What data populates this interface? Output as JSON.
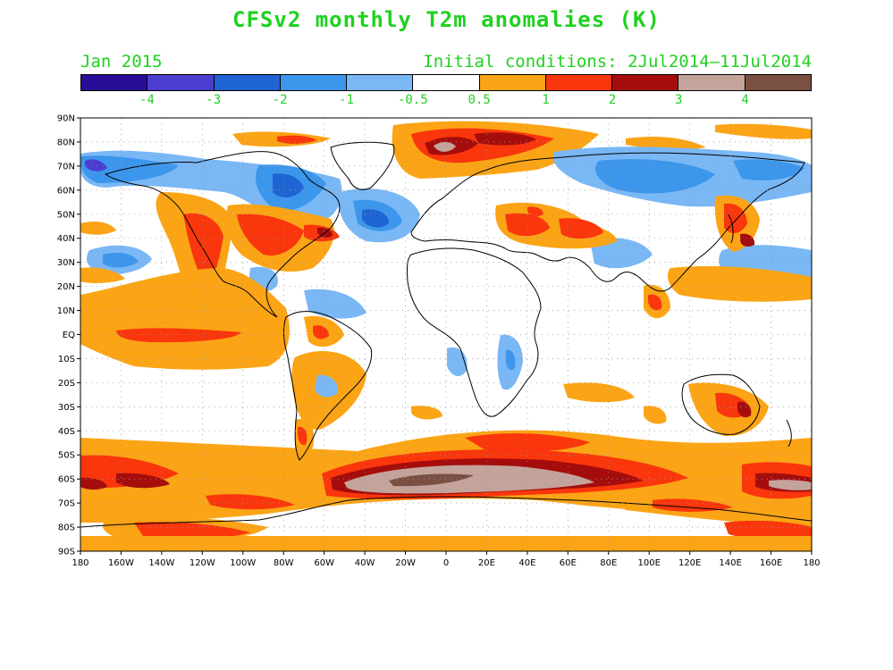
{
  "title": "CFSv2 monthly T2m anomalies (K)",
  "month": "Jan 2015",
  "initial_conditions": "Initial conditions: 2Jul2014–11Jul2014",
  "colorbar": {
    "colors": [
      "#2a0d96",
      "#4b3ecf",
      "#1e64d2",
      "#3c96eb",
      "#7ab7f5",
      "#ffffff",
      "#fba415",
      "#f9360c",
      "#a50d0d",
      "#c4a39a",
      "#7a5043"
    ],
    "labels": [
      "-4",
      "-3",
      "-2",
      "-1",
      "-0.5",
      "0.5",
      "1",
      "2",
      "3",
      "4"
    ]
  },
  "lat_labels": [
    "90N",
    "80N",
    "70N",
    "60N",
    "50N",
    "40N",
    "30N",
    "20N",
    "10N",
    "EQ",
    "10S",
    "20S",
    "30S",
    "40S",
    "50S",
    "60S",
    "70S",
    "80S",
    "90S"
  ],
  "lon_labels": [
    "180",
    "160W",
    "140W",
    "120W",
    "100W",
    "80W",
    "60W",
    "40W",
    "20W",
    "0",
    "20E",
    "40E",
    "60E",
    "80E",
    "100E",
    "120E",
    "140E",
    "160E",
    "180"
  ]
}
